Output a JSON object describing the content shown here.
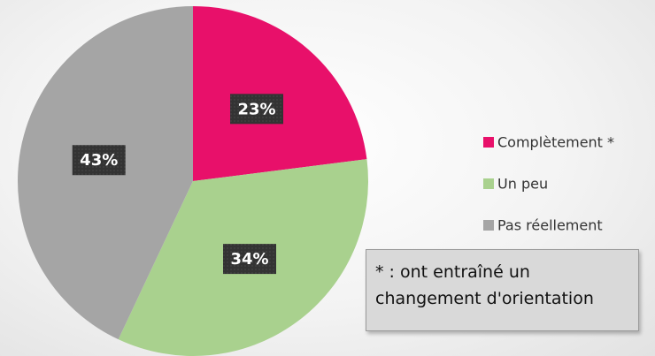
{
  "chart_data": {
    "type": "pie",
    "categories": [
      "Complètement *",
      "Un peu",
      "Pas réellement"
    ],
    "values": [
      23,
      34,
      43
    ],
    "value_labels": [
      "23%",
      "34%",
      "43%"
    ],
    "colors": [
      "#e8106a",
      "#a9d18e",
      "#a5a5a5"
    ],
    "legend": "right",
    "annotation": "* : ont entraîné un changement d'orientation"
  }
}
